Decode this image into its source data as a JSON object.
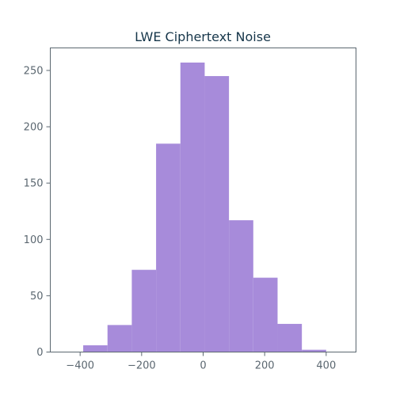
{
  "chart_data": {
    "type": "bar",
    "title": "LWE Ciphertext Noise",
    "xlabel": "",
    "ylabel": "",
    "bins": [
      {
        "start": -390,
        "end": -311,
        "count": 6
      },
      {
        "start": -311,
        "end": -232,
        "count": 24
      },
      {
        "start": -232,
        "end": -153,
        "count": 73
      },
      {
        "start": -153,
        "end": -74,
        "count": 185
      },
      {
        "start": -74,
        "end": 5,
        "count": 257
      },
      {
        "start": 5,
        "end": 84,
        "count": 245
      },
      {
        "start": 84,
        "end": 163,
        "count": 117
      },
      {
        "start": 163,
        "end": 242,
        "count": 66
      },
      {
        "start": 242,
        "end": 321,
        "count": 25
      },
      {
        "start": 321,
        "end": 400,
        "count": 2
      }
    ],
    "xlim": [
      -497,
      497
    ],
    "ylim": [
      0,
      270
    ],
    "xticks": [
      -400,
      -200,
      0,
      200,
      400
    ],
    "xtick_labels": [
      "−400",
      "−200",
      "0",
      "200",
      "400"
    ],
    "yticks": [
      0,
      50,
      100,
      150,
      200,
      250
    ],
    "ytick_labels": [
      "0",
      "50",
      "100",
      "150",
      "200",
      "250"
    ],
    "grid": false,
    "bar_color": "#a78bda",
    "axis_color": "#5b6770",
    "title_color": "#16364a"
  }
}
